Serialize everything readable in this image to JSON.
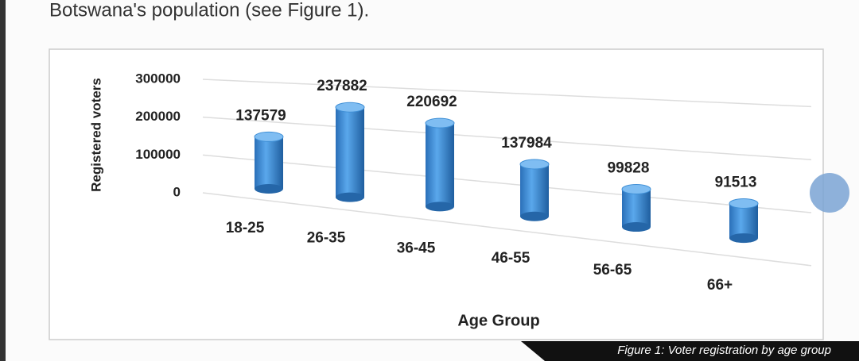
{
  "context_text": "Botswana's population (see Figure 1).",
  "chart_data": {
    "type": "bar3d",
    "caption": "Figure 1: Voter registration by age group",
    "ylabel": "Registered voters",
    "xlabel": "Age Group",
    "categories": [
      "18-25",
      "26-35",
      "36-45",
      "46-55",
      "56-65",
      "66+"
    ],
    "values": [
      137579,
      237882,
      220692,
      137984,
      99828,
      91513
    ],
    "color": "#3f8fd6",
    "ylim": [
      0,
      300000
    ],
    "yticks": [
      0,
      100000,
      200000,
      300000
    ],
    "grid": true
  }
}
